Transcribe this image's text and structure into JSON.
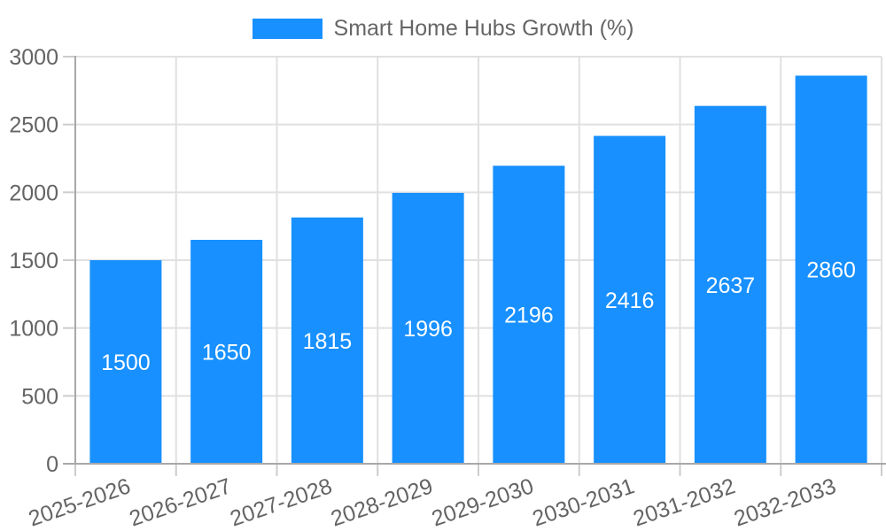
{
  "chart_data": {
    "type": "bar",
    "title": "Smart Home Hubs Growth (%)",
    "legend": {
      "position": "top",
      "entries": [
        "Smart Home Hubs Growth (%)"
      ]
    },
    "categories": [
      "2025-2026",
      "2026-2027",
      "2027-2028",
      "2028-2029",
      "2029-2030",
      "2030-2031",
      "2031-2032",
      "2032-2033"
    ],
    "values": [
      1500,
      1650,
      1815,
      1996,
      2196,
      2416,
      2637,
      2860
    ],
    "value_labels": [
      "1500",
      "1650",
      "1815",
      "1996",
      "2196",
      "2416",
      "2637",
      "2860"
    ],
    "value_labels_inside_bars": true,
    "xlabel": "",
    "ylabel": "",
    "ylim": [
      0,
      3000
    ],
    "yticks": [
      0,
      500,
      1000,
      1500,
      2000,
      2500,
      3000
    ],
    "grid": true,
    "x_tick_label_rotation_deg": -19,
    "colors": {
      "bar": "#1890ff",
      "grid": "#e0e0e0",
      "axis": "#a8a8a8",
      "tick": "#cccccc",
      "tick_text": "#646464",
      "legend_text": "#666666",
      "value_text": "#ffffff",
      "background": "#ffffff"
    }
  }
}
